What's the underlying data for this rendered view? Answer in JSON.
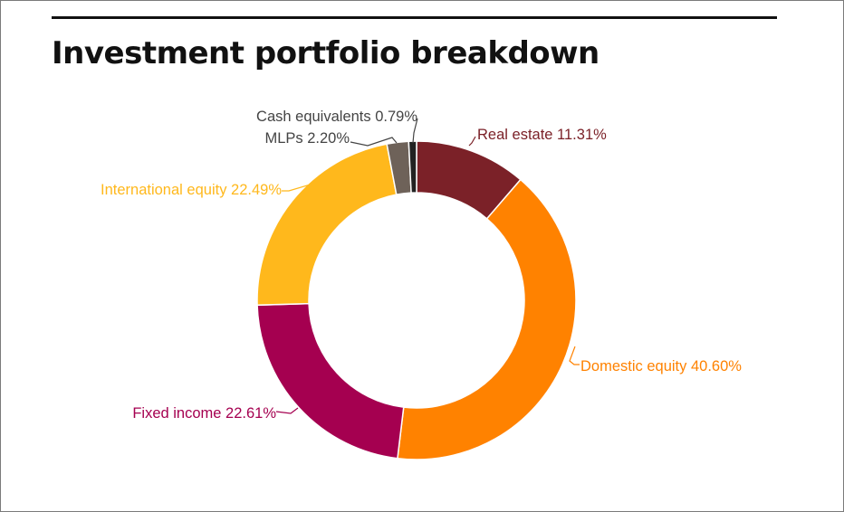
{
  "chart_data": {
    "type": "pie",
    "donut": true,
    "title": "Investment portfolio breakdown",
    "series": [
      {
        "slices": [
          {
            "name": "Real estate",
            "value": 11.31,
            "label": "Real estate 11.31%",
            "color": "#7b2128"
          },
          {
            "name": "Domestic equity",
            "value": 40.6,
            "label": "Domestic equity 40.60%",
            "color": "#ff8200"
          },
          {
            "name": "Fixed income",
            "value": 22.61,
            "label": "Fixed income 22.61%",
            "color": "#a50050"
          },
          {
            "name": "International equity",
            "value": 22.49,
            "label": "International equity 22.49%",
            "color": "#ffb81c"
          },
          {
            "name": "MLPs",
            "value": 2.2,
            "label": "MLPs 2.20%",
            "color": "#6e6259"
          },
          {
            "name": "Cash equivalents",
            "value": 0.79,
            "label": "Cash equivalents 0.79%",
            "color": "#222222"
          }
        ]
      }
    ],
    "legend": "none"
  },
  "colors": {
    "title": "#111111",
    "label_neutral": "#444444"
  }
}
